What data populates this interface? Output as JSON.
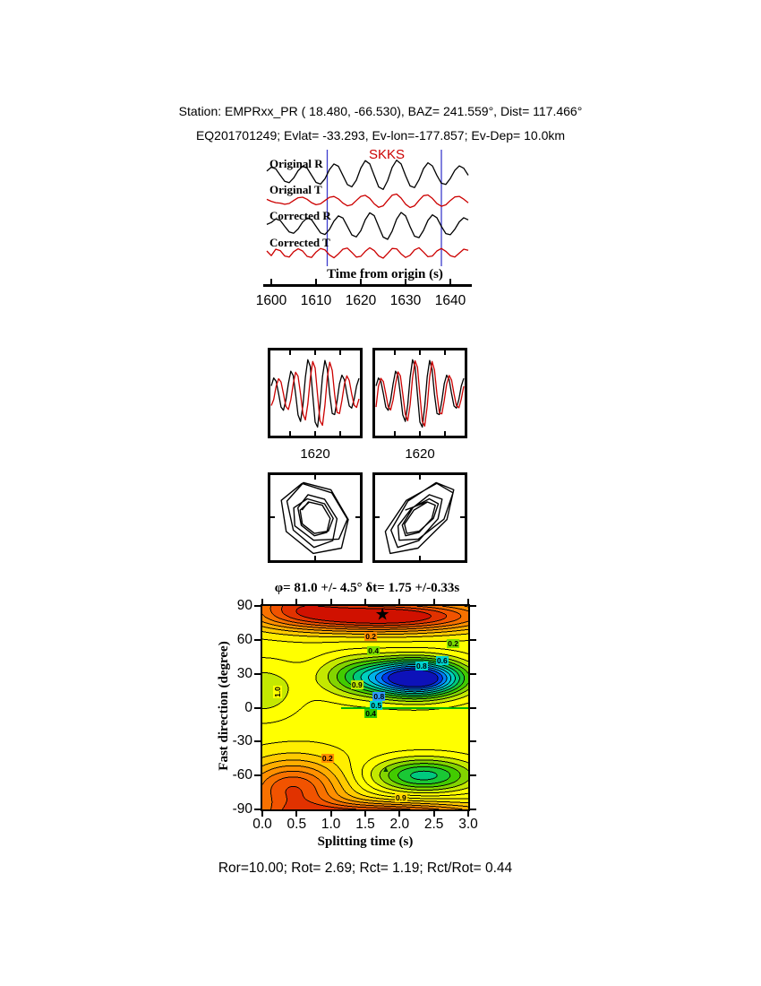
{
  "header": {
    "line1": "Station: EMPRxx_PR (  18.480,  -66.530), BAZ=  241.559°, Dist=  117.466°",
    "line2": "EQ201701249; Evlat= -33.293, Ev-lon=-177.857; Ev-Dep= 10.0km"
  },
  "footer": {
    "stats": "Ror=10.00; Rot= 2.69; Rct= 1.19; Rct/Rot= 0.44"
  },
  "chart_data": [
    {
      "name": "waveform-traces",
      "type": "line",
      "phase_label": "SKKS",
      "xlabel": "Time from origin (s)",
      "x_start": 1599,
      "x_step": 1,
      "x_ticks": [
        1600,
        1610,
        1620,
        1630,
        1640
      ],
      "window_lines": [
        1612.5,
        1638
      ],
      "window_color": "#3c3ccd",
      "traces": [
        {
          "label": "Original R",
          "color": "#000000",
          "values": [
            0.24,
            0.5,
            0.39,
            -0.03,
            -0.43,
            -0.52,
            -0.21,
            0.27,
            0.56,
            0.44,
            -0.03,
            -0.5,
            -0.61,
            -0.26,
            0.34,
            0.71,
            0.56,
            -0.04,
            -0.64,
            -0.79,
            -0.35,
            0.44,
            0.93,
            0.72,
            -0.05,
            -0.8,
            -0.96,
            -0.38,
            0.48,
            0.96,
            0.71,
            -0.05,
            -0.73,
            -0.84,
            -0.33,
            0.4,
            0.79,
            0.58,
            -0.04,
            -0.55,
            -0.63,
            -0.24,
            0.29,
            0.58,
            0.43,
            -0.03
          ]
        },
        {
          "label": "Original T",
          "color": "#cc0000",
          "values": [
            0.12,
            -0.05,
            -0.16,
            -0.2,
            -0.3,
            -0.23,
            0.02,
            0.26,
            0.31,
            0.13,
            -0.16,
            -0.34,
            -0.26,
            0.02,
            0.3,
            0.37,
            0.16,
            -0.2,
            -0.43,
            -0.34,
            0.02,
            0.38,
            0.47,
            0.21,
            -0.26,
            -0.56,
            -0.43,
            0.03,
            0.48,
            0.58,
            0.23,
            -0.29,
            -0.58,
            -0.43,
            0.03,
            0.44,
            0.5,
            0.2,
            -0.24,
            -0.47,
            -0.35,
            0.02,
            0.33,
            0.38,
            0.14,
            -0.17
          ]
        },
        {
          "label": "Corrected R",
          "color": "#000000",
          "values": [
            0.1,
            0.24,
            0.49,
            0.38,
            -0.03,
            -0.42,
            -0.51,
            -0.21,
            0.26,
            0.55,
            0.43,
            -0.03,
            -0.49,
            -0.6,
            -0.25,
            0.33,
            0.7,
            0.55,
            -0.04,
            -0.63,
            -0.77,
            -0.34,
            0.43,
            0.91,
            0.71,
            -0.05,
            -0.78,
            -0.94,
            -0.37,
            0.47,
            0.94,
            0.7,
            -0.05,
            -0.72,
            -0.82,
            -0.32,
            0.39,
            0.77,
            0.57,
            -0.04,
            -0.54,
            -0.62,
            -0.24,
            0.28,
            0.57,
            0.42
          ]
        },
        {
          "label": "Corrected T",
          "color": "#cc0000",
          "values": [
            0.05,
            -0.08,
            0.1,
            0.06,
            -0.09,
            -0.12,
            0.03,
            0.11,
            0.05,
            -0.1,
            -0.13,
            0.02,
            0.12,
            0.08,
            -0.06,
            -0.14,
            -0.03,
            0.1,
            0.13,
            0.01,
            -0.12,
            -0.1,
            0.04,
            0.14,
            0.06,
            -0.09,
            -0.15,
            -0.02,
            0.12,
            0.11,
            -0.03,
            -0.13,
            -0.07,
            0.08,
            0.14,
            0.02,
            -0.11,
            -0.09,
            0.05,
            0.12,
            0.04,
            -0.08,
            -0.12,
            -0.01,
            0.1,
            0.07
          ]
        }
      ]
    },
    {
      "name": "fast-slow-window-pair",
      "type": "line",
      "x_tick_label": "1620",
      "boxes": [
        {
          "series": [
            {
              "name": "window-component-1",
              "color": "#000000",
              "values": [
                0.2,
                0.42,
                0.33,
                -0.02,
                -0.39,
                -0.48,
                -0.2,
                0.26,
                0.61,
                0.49,
                -0.03,
                -0.61,
                -0.79,
                -0.33,
                0.44,
                0.93,
                0.74,
                -0.05,
                -0.81,
                -0.95,
                -0.37,
                0.46,
                0.91,
                0.66,
                -0.04,
                -0.57,
                -0.6,
                -0.22,
                0.26,
                0.5,
                0.37,
                -0.02,
                -0.36,
                -0.42,
                -0.17,
                0.2,
                0.41
              ]
            },
            {
              "name": "window-component-2",
              "color": "#cc0000",
              "values": [
                -0.35,
                -0.18,
                0.19,
                0.4,
                0.31,
                -0.02,
                -0.37,
                -0.46,
                -0.19,
                0.25,
                0.58,
                0.47,
                -0.03,
                -0.58,
                -0.75,
                -0.31,
                0.42,
                0.88,
                0.7,
                -0.05,
                -0.77,
                -0.9,
                -0.35,
                0.44,
                0.86,
                0.63,
                -0.04,
                -0.54,
                -0.57,
                -0.21,
                0.25,
                0.48,
                0.35,
                -0.02,
                -0.34,
                -0.4,
                -0.16
              ]
            }
          ]
        },
        {
          "series": [
            {
              "name": "window-component-1",
              "color": "#000000",
              "values": [
                0.2,
                0.42,
                0.33,
                -0.02,
                -0.39,
                -0.48,
                -0.2,
                0.26,
                0.61,
                0.49,
                -0.03,
                -0.61,
                -0.79,
                -0.33,
                0.44,
                0.93,
                0.74,
                -0.05,
                -0.81,
                -0.95,
                -0.37,
                0.46,
                0.91,
                0.66,
                -0.04,
                -0.57,
                -0.6,
                -0.22,
                0.26,
                0.5,
                0.37,
                -0.02,
                -0.36,
                -0.42,
                -0.17,
                0.2,
                0.41
              ]
            },
            {
              "name": "window-component-2",
              "color": "#cc0000",
              "values": [
                -0.39,
                0.19,
                0.41,
                0.32,
                -0.02,
                -0.38,
                -0.47,
                -0.19,
                0.25,
                0.59,
                0.48,
                -0.03,
                -0.59,
                -0.77,
                -0.32,
                0.43,
                0.9,
                0.72,
                -0.05,
                -0.79,
                -0.92,
                -0.36,
                0.45,
                0.88,
                0.64,
                -0.04,
                -0.55,
                -0.58,
                -0.21,
                0.25,
                0.49,
                0.36,
                -0.02,
                -0.35,
                -0.41,
                -0.16,
                0.19
              ]
            }
          ]
        }
      ]
    },
    {
      "name": "particle-motion",
      "type": "scatter",
      "boxes": [
        {
          "source_box": 0,
          "x_series": 1,
          "y_series": 0
        },
        {
          "source_box": 1,
          "x_series": 1,
          "y_series": 0
        }
      ]
    },
    {
      "name": "splitting-misfit-map",
      "type": "heatmap",
      "title": "φ= 81.0 +/- 4.5° δt= 1.75 +/-0.33s",
      "xlabel": "Splitting time (s)",
      "ylabel": "Fast direction (degree)",
      "x_range": [
        0,
        3
      ],
      "y_range": [
        -90,
        90
      ],
      "x_ticks": [
        "0.0",
        "0.5",
        "1.0",
        "1.5",
        "2.0",
        "2.5",
        "3.0"
      ],
      "y_ticks": [
        90,
        60,
        30,
        0,
        -30,
        -60,
        -90
      ],
      "best_fit": {
        "phi": 81.0,
        "phi_err": 4.5,
        "dt": 1.75,
        "dt_err": 0.33
      },
      "colormap": [
        [
          0.0,
          "#c80000"
        ],
        [
          0.12,
          "#f05000"
        ],
        [
          0.22,
          "#ff8c00"
        ],
        [
          0.32,
          "#ffc800"
        ],
        [
          0.4,
          "#ffff00"
        ],
        [
          0.48,
          "#ffff00"
        ],
        [
          0.56,
          "#96d700"
        ],
        [
          0.64,
          "#2fc800"
        ],
        [
          0.72,
          "#00c878"
        ],
        [
          0.79,
          "#00d2d2"
        ],
        [
          0.86,
          "#0096ff"
        ],
        [
          0.93,
          "#0032e6"
        ],
        [
          1.0,
          "#1400a0"
        ]
      ],
      "field": {
        "base": 0.42,
        "contour_interval": 0.05,
        "gaussians": [
          {
            "cx": 1.75,
            "cy": 81,
            "sx": 1.6,
            "sy": 14,
            "amp": -0.45
          },
          {
            "cx": 0.45,
            "cy": -72,
            "sx": 0.75,
            "sy": 26,
            "amp": -0.32
          },
          {
            "cx": 2.25,
            "cy": 26,
            "sx": 0.68,
            "sy": 16,
            "amp": 0.65
          },
          {
            "cx": 2.35,
            "cy": -60,
            "sx": 0.75,
            "sy": 15,
            "amp": 0.3
          },
          {
            "cx": 1.35,
            "cy": 28,
            "sx": 0.55,
            "sy": 18,
            "amp": 0.18
          },
          {
            "cx": 0.0,
            "cy": 15,
            "sx": 0.55,
            "sy": 25,
            "amp": 0.12
          }
        ]
      },
      "zero_line": {
        "phi": 0,
        "from": 1.15,
        "to": 3.0,
        "color": "#00b400"
      },
      "markers": [
        {
          "symbol": "star",
          "dt": 1.75,
          "phi": 81,
          "color": "#000000"
        },
        {
          "symbol": "triangle",
          "dt": 1.8,
          "phi": -55,
          "color": "#003c00"
        }
      ],
      "contour_labels": [
        {
          "text": "0.2",
          "dt": 1.58,
          "phi": 63,
          "bg": "#ff8c00"
        },
        {
          "text": "0.4",
          "dt": 1.62,
          "phi": 50,
          "bg": "#7de000"
        },
        {
          "text": "0.2",
          "dt": 2.78,
          "phi": 57,
          "bg": "#7de000"
        },
        {
          "text": "0.6",
          "dt": 2.62,
          "phi": 42,
          "bg": "#00d2d2"
        },
        {
          "text": "0.8",
          "dt": 2.32,
          "phi": 37,
          "bg": "#00d2d2"
        },
        {
          "text": "0.9",
          "dt": 1.38,
          "phi": 20,
          "bg": "#bfe600"
        },
        {
          "text": "0.8",
          "dt": 1.7,
          "phi": 10,
          "bg": "#2f9bff"
        },
        {
          "text": "0.5",
          "dt": 1.66,
          "phi": 2,
          "bg": "#00d2d2"
        },
        {
          "text": "0.4",
          "dt": 1.58,
          "phi": -5,
          "bg": "#2fc800"
        },
        {
          "text": "1.0",
          "dt": 0.22,
          "phi": 14,
          "bg": "#ffff00",
          "rotate": true
        },
        {
          "text": "0.2",
          "dt": 0.95,
          "phi": -45,
          "bg": "#ff8c00"
        },
        {
          "text": "0.9",
          "dt": 2.02,
          "phi": -80,
          "bg": "#ffd700"
        }
      ]
    }
  ]
}
